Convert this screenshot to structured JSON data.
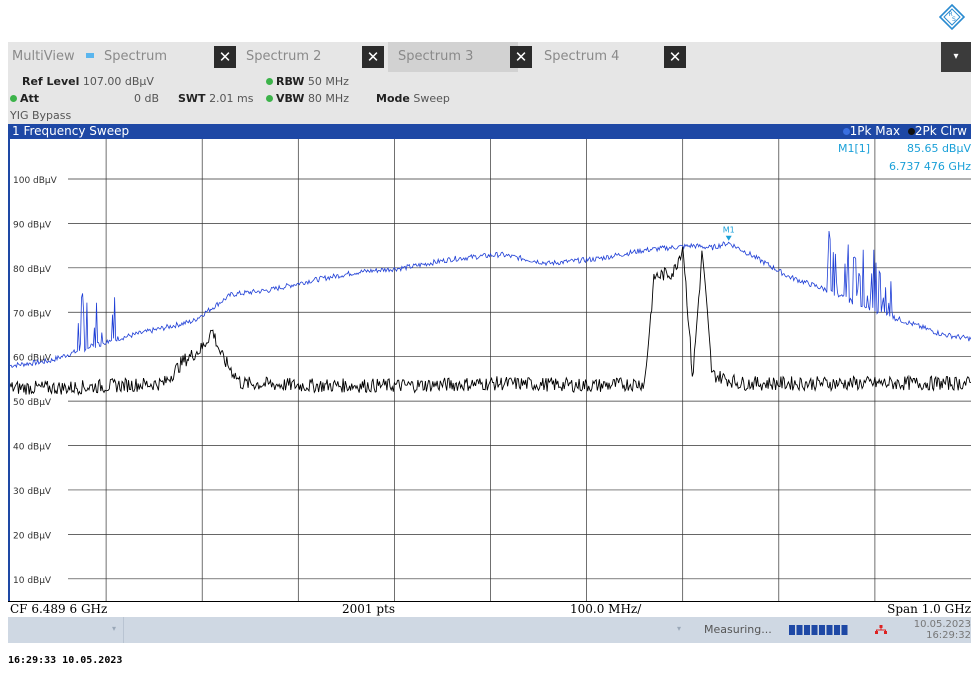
{
  "tabs": {
    "multiview_label": "MultiView",
    "items": [
      {
        "label": "Spectrum"
      },
      {
        "label": "Spectrum 2"
      },
      {
        "label": "Spectrum 3"
      },
      {
        "label": "Spectrum 4"
      }
    ],
    "close_symbol": "✕",
    "dropdown_symbol": "▾"
  },
  "settings": {
    "ref_level_label": "Ref Level",
    "ref_level_value": "107.00 dBµV",
    "att_label": "Att",
    "att_value": "0 dB",
    "swt_label": "SWT",
    "swt_value": "2.01 ms",
    "rbw_label": "RBW",
    "rbw_value": "50 MHz",
    "vbw_label": "VBW",
    "vbw_value": "80 MHz",
    "mode_label": "Mode",
    "mode_value": "Sweep",
    "yig_label": "YIG Bypass"
  },
  "window": {
    "title": "1 Frequency Sweep",
    "trace1_label": "1Pk Max",
    "trace2_label": "2Pk Clrw"
  },
  "marker": {
    "name": "M1[1]",
    "level": "85.65 dBµV",
    "freq": "6.737 476 GHz",
    "plot_label": "M1"
  },
  "footer": {
    "cf": "CF 6.489 6 GHz",
    "pts": "2001 pts",
    "div": "100.0 MHz/",
    "span": "Span 1.0 GHz"
  },
  "status": {
    "measuring": "Measuring...",
    "date": "10.05.2023",
    "time": "16:29:32"
  },
  "timestamp": "16:29:33  10.05.2023",
  "colors": {
    "accent": "#1e48a5",
    "trace1": "#1f3fd6",
    "trace2": "#000000",
    "marker": "#1aa0d8",
    "led": "#3cb34a"
  },
  "chart_data": {
    "type": "line",
    "xlabel": "",
    "ylabel": "",
    "x_range_ghz": [
      5.9896,
      6.9896
    ],
    "ylim": [
      5,
      109
    ],
    "y_ticks": [
      10,
      20,
      30,
      40,
      50,
      60,
      70,
      80,
      90,
      100
    ],
    "y_tick_labels": [
      "10 dBµV",
      "20 dBµV",
      "30 dBµV",
      "40 dBµV",
      "50 dBµV",
      "60 dBµV",
      "70 dBµV",
      "80 dBµV",
      "90 dBµV",
      "100 dBµV"
    ],
    "grid": true,
    "series": [
      {
        "name": "1Pk Max",
        "x": [
          5.99,
          6.03,
          6.07,
          6.1,
          6.14,
          6.18,
          6.2,
          6.22,
          6.26,
          6.3,
          6.35,
          6.4,
          6.45,
          6.5,
          6.55,
          6.6,
          6.65,
          6.7,
          6.72,
          6.737,
          6.76,
          6.8,
          6.84,
          6.88,
          6.92,
          6.96,
          6.99
        ],
        "y": [
          58,
          59,
          62,
          64,
          66,
          68,
          71,
          74,
          75,
          77,
          79,
          80,
          82,
          83,
          81,
          82,
          84,
          85,
          84.5,
          85.65,
          83,
          78,
          75,
          71,
          68,
          65,
          64
        ]
      },
      {
        "name": "2Pk Clrw",
        "x": [
          5.99,
          6.05,
          6.15,
          6.17,
          6.19,
          6.2,
          6.21,
          6.23,
          6.3,
          6.4,
          6.5,
          6.6,
          6.65,
          6.66,
          6.68,
          6.69,
          6.7,
          6.71,
          6.72,
          6.75,
          6.8,
          6.9,
          6.99
        ],
        "y": [
          53,
          53,
          54,
          59,
          62,
          66,
          60,
          54,
          53.5,
          53.5,
          54,
          53.5,
          54,
          78,
          79,
          85,
          55,
          84,
          56,
          54,
          54,
          54,
          54
        ]
      }
    ],
    "marker": {
      "x_ghz": 6.737476,
      "y": 85.65
    }
  }
}
